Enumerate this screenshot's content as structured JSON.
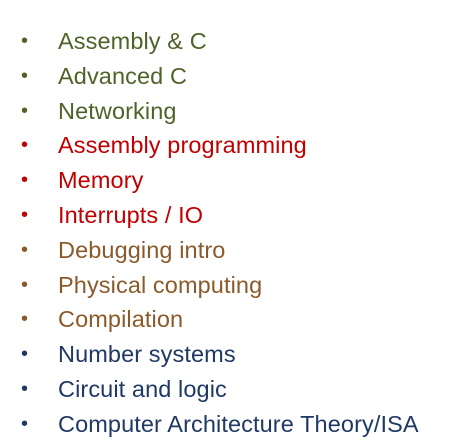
{
  "colors": {
    "green": "#4f6228",
    "red": "#c00000",
    "brown": "#8a5a2b",
    "navy": "#1f3864"
  },
  "bullet_glyph": "•",
  "topics": [
    {
      "label": "Assembly & C",
      "color_group": "green"
    },
    {
      "label": "Advanced C",
      "color_group": "green"
    },
    {
      "label": "Networking",
      "color_group": "green"
    },
    {
      "label": "Assembly programming",
      "color_group": "red"
    },
    {
      "label": "Memory",
      "color_group": "red"
    },
    {
      "label": "Interrupts / IO",
      "color_group": "red"
    },
    {
      "label": "Debugging intro",
      "color_group": "brown"
    },
    {
      "label": "Physical computing",
      "color_group": "brown"
    },
    {
      "label": "Compilation",
      "color_group": "brown"
    },
    {
      "label": "Number systems",
      "color_group": "navy"
    },
    {
      "label": "Circuit and logic",
      "color_group": "navy"
    },
    {
      "label": "Computer Architecture Theory/ISA",
      "color_group": "navy"
    }
  ]
}
